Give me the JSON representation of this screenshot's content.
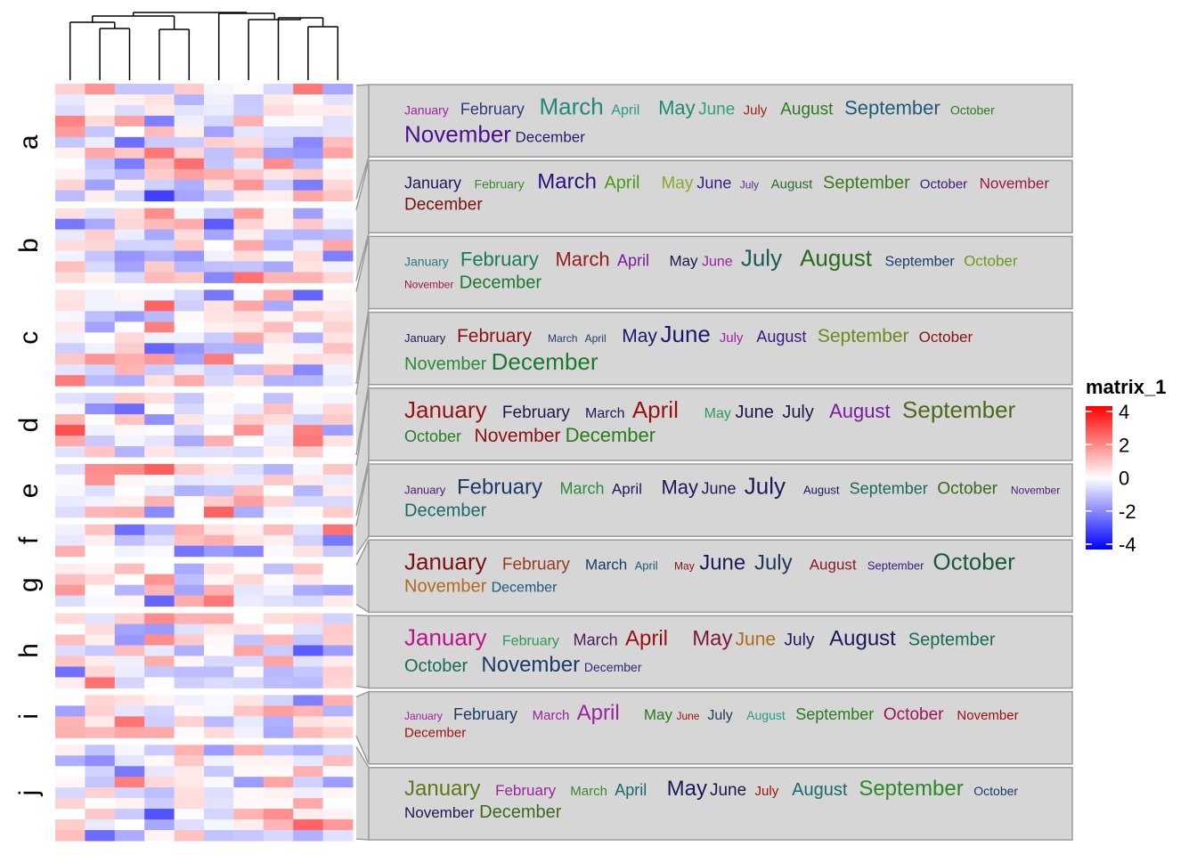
{
  "colors": {
    "neg": "#0000FF",
    "mid": "#FFFFFF",
    "pos": "#FF0000",
    "panel_fill": "#d6d6d6",
    "panel_border": "#9a9a9a",
    "link_line": "#9a9a9a",
    "dendrogram": "#000000"
  },
  "chart_data": {
    "type": "heatmap",
    "columns": 10,
    "row_groups": [
      {
        "label": "a",
        "n": 11
      },
      {
        "label": "b",
        "n": 7
      },
      {
        "label": "c",
        "n": 9
      },
      {
        "label": "d",
        "n": 6
      },
      {
        "label": "e",
        "n": 5
      },
      {
        "label": "f",
        "n": 3
      },
      {
        "label": "g",
        "n": 4
      },
      {
        "label": "h",
        "n": 7
      },
      {
        "label": "i",
        "n": 4
      },
      {
        "label": "j",
        "n": 9
      }
    ],
    "value_range": [
      -4,
      4
    ],
    "legend": {
      "title": "matrix_1",
      "ticks": [
        4,
        2,
        0,
        -2,
        -4
      ],
      "placement": "right"
    },
    "month_names": [
      "January",
      "February",
      "March",
      "April",
      "May",
      "June",
      "July",
      "August",
      "September",
      "October",
      "November",
      "December"
    ],
    "annotation_panels": [
      {
        "words": [
          {
            "w": "January",
            "s": 14,
            "c": "#a020a0"
          },
          {
            "w": "February",
            "s": 18,
            "c": "#2f3a7a"
          },
          {
            "w": "March",
            "s": 26,
            "c": "#1f8a7a"
          },
          {
            "w": "April",
            "s": 16,
            "c": "#2a9a8a"
          },
          {
            "w": "May",
            "s": 22,
            "c": "#208a70"
          },
          {
            "w": "June",
            "s": 19,
            "c": "#30a080"
          },
          {
            "w": "July",
            "s": 15,
            "c": "#a02010"
          },
          {
            "w": "August",
            "s": 19,
            "c": "#2f7a20"
          },
          {
            "w": "September",
            "s": 22,
            "c": "#1e5a7a"
          },
          {
            "w": "October",
            "s": 14,
            "c": "#2f7a20"
          },
          {
            "w": "November",
            "s": 26,
            "c": "#4a1090"
          },
          {
            "w": "December",
            "s": 17,
            "c": "#2a1a6a"
          }
        ]
      },
      {
        "words": [
          {
            "w": "January",
            "s": 18,
            "c": "#1a1a5a"
          },
          {
            "w": "February",
            "s": 14,
            "c": "#3a8a2a"
          },
          {
            "w": "March",
            "s": 24,
            "c": "#2a1080"
          },
          {
            "w": "April",
            "s": 20,
            "c": "#4a9a1a"
          },
          {
            "w": "May",
            "s": 19,
            "c": "#8aaa2a"
          },
          {
            "w": "June",
            "s": 18,
            "c": "#3a1a8a"
          },
          {
            "w": "July",
            "s": 12,
            "c": "#5a2a9a"
          },
          {
            "w": "August",
            "s": 15,
            "c": "#2a6a2a"
          },
          {
            "w": "September",
            "s": 20,
            "c": "#3a7a1a"
          },
          {
            "w": "October",
            "s": 15,
            "c": "#3a1a7a"
          },
          {
            "w": "November",
            "s": 17,
            "c": "#9a1a3a"
          },
          {
            "w": "December",
            "s": 19,
            "c": "#7a1010"
          }
        ]
      },
      {
        "words": [
          {
            "w": "January",
            "s": 14,
            "c": "#2a7a7a"
          },
          {
            "w": "February",
            "s": 22,
            "c": "#1a7a5a"
          },
          {
            "w": "March",
            "s": 22,
            "c": "#9a1a1a"
          },
          {
            "w": "April",
            "s": 18,
            "c": "#7a1a9a"
          },
          {
            "w": "May",
            "s": 17,
            "c": "#1a1a4a"
          },
          {
            "w": "June",
            "s": 16,
            "c": "#a020a0"
          },
          {
            "w": "July",
            "s": 26,
            "c": "#1a5a5a"
          },
          {
            "w": "August",
            "s": 26,
            "c": "#2a6a1a"
          },
          {
            "w": "September",
            "s": 16,
            "c": "#1a3a6a"
          },
          {
            "w": "October",
            "s": 17,
            "c": "#6a9a1a"
          },
          {
            "w": "November",
            "s": 12,
            "c": "#9a1a3a"
          },
          {
            "w": "December",
            "s": 20,
            "c": "#1a7a2a"
          }
        ]
      },
      {
        "words": [
          {
            "w": "January",
            "s": 13,
            "c": "#1a1a5a"
          },
          {
            "w": "February",
            "s": 21,
            "c": "#8a1010"
          },
          {
            "w": "March",
            "s": 12,
            "c": "#2a3a6a"
          },
          {
            "w": "April",
            "s": 12,
            "c": "#2a3a6a"
          },
          {
            "w": "May",
            "s": 21,
            "c": "#1a1a6a"
          },
          {
            "w": "June",
            "s": 26,
            "c": "#1a1a6a"
          },
          {
            "w": "July",
            "s": 15,
            "c": "#a020a0"
          },
          {
            "w": "August",
            "s": 18,
            "c": "#3a1a7a"
          },
          {
            "w": "September",
            "s": 21,
            "c": "#6a8a1a"
          },
          {
            "w": "October",
            "s": 17,
            "c": "#8a1010"
          },
          {
            "w": "November",
            "s": 20,
            "c": "#2a8a3a"
          },
          {
            "w": "December",
            "s": 26,
            "c": "#1a7a2a"
          }
        ]
      },
      {
        "words": [
          {
            "w": "January",
            "s": 26,
            "c": "#9a1010"
          },
          {
            "w": "February",
            "s": 19,
            "c": "#1a1a4a"
          },
          {
            "w": "March",
            "s": 16,
            "c": "#1a1a5a"
          },
          {
            "w": "April",
            "s": 26,
            "c": "#9a1010"
          },
          {
            "w": "May",
            "s": 16,
            "c": "#2a9a5a"
          },
          {
            "w": "June",
            "s": 20,
            "c": "#1a1a4a"
          },
          {
            "w": "July",
            "s": 20,
            "c": "#1a1a4a"
          },
          {
            "w": "August",
            "s": 22,
            "c": "#7a1aa0"
          },
          {
            "w": "September",
            "s": 26,
            "c": "#4a6a1a"
          },
          {
            "w": "October",
            "s": 18,
            "c": "#2a7a2a"
          },
          {
            "w": "November",
            "s": 21,
            "c": "#8a1010"
          },
          {
            "w": "December",
            "s": 22,
            "c": "#2a7a1a"
          }
        ]
      },
      {
        "words": [
          {
            "w": "January",
            "s": 13,
            "c": "#4a1a7a"
          },
          {
            "w": "February",
            "s": 24,
            "c": "#1a3a6a"
          },
          {
            "w": "March",
            "s": 18,
            "c": "#2a8a3a"
          },
          {
            "w": "April",
            "s": 17,
            "c": "#1a1a5a"
          },
          {
            "w": "May",
            "s": 22,
            "c": "#1a1a5a"
          },
          {
            "w": "June",
            "s": 18,
            "c": "#1a1a5a"
          },
          {
            "w": "July",
            "s": 26,
            "c": "#1a1a5a"
          },
          {
            "w": "August",
            "s": 13,
            "c": "#1a1a5a"
          },
          {
            "w": "September",
            "s": 18,
            "c": "#1a6a5a"
          },
          {
            "w": "October",
            "s": 19,
            "c": "#3a6a1a"
          },
          {
            "w": "November",
            "s": 12,
            "c": "#4a1a7a"
          },
          {
            "w": "December",
            "s": 20,
            "c": "#1a6a6a"
          }
        ]
      },
      {
        "words": [
          {
            "w": "January",
            "s": 26,
            "c": "#7a1010"
          },
          {
            "w": "February",
            "s": 19,
            "c": "#9a3a1a"
          },
          {
            "w": "March",
            "s": 17,
            "c": "#1a3a6a"
          },
          {
            "w": "April",
            "s": 13,
            "c": "#1a5a6a"
          },
          {
            "w": "May",
            "s": 12,
            "c": "#8a1010"
          },
          {
            "w": "June",
            "s": 24,
            "c": "#1a1a5a"
          },
          {
            "w": "July",
            "s": 24,
            "c": "#1a3a5a"
          },
          {
            "w": "August",
            "s": 17,
            "c": "#8a1a2a"
          },
          {
            "w": "September",
            "s": 13,
            "c": "#3a1a7a"
          },
          {
            "w": "October",
            "s": 26,
            "c": "#1a5a3a"
          },
          {
            "w": "November",
            "s": 20,
            "c": "#b06a1a"
          },
          {
            "w": "December",
            "s": 16,
            "c": "#1a5a7a"
          }
        ]
      },
      {
        "words": [
          {
            "w": "January",
            "s": 26,
            "c": "#c0108a"
          },
          {
            "w": "February",
            "s": 16,
            "c": "#2a9a5a"
          },
          {
            "w": "March",
            "s": 18,
            "c": "#4a1a5a"
          },
          {
            "w": "April",
            "s": 24,
            "c": "#9a1010"
          },
          {
            "w": "May",
            "s": 24,
            "c": "#7a1a3a"
          },
          {
            "w": "June",
            "s": 21,
            "c": "#b06a1a"
          },
          {
            "w": "July",
            "s": 19,
            "c": "#1a1a5a"
          },
          {
            "w": "August",
            "s": 24,
            "c": "#1a1a5a"
          },
          {
            "w": "September",
            "s": 20,
            "c": "#1a6a5a"
          },
          {
            "w": "October",
            "s": 20,
            "c": "#1a6a5a"
          },
          {
            "w": "November",
            "s": 24,
            "c": "#1a3a6a"
          },
          {
            "w": "December",
            "s": 14,
            "c": "#2a2a7a"
          }
        ]
      },
      {
        "words": [
          {
            "w": "January",
            "s": 12,
            "c": "#a020a0"
          },
          {
            "w": "February",
            "s": 18,
            "c": "#1a3a6a"
          },
          {
            "w": "March",
            "s": 15,
            "c": "#a020a0"
          },
          {
            "w": "April",
            "s": 24,
            "c": "#a020a0"
          },
          {
            "w": "May",
            "s": 17,
            "c": "#2a7a1a"
          },
          {
            "w": "June",
            "s": 12,
            "c": "#9a1010"
          },
          {
            "w": "July",
            "s": 16,
            "c": "#1a3a5a"
          },
          {
            "w": "August",
            "s": 14,
            "c": "#2a9a8a"
          },
          {
            "w": "September",
            "s": 18,
            "c": "#2a7a1a"
          },
          {
            "w": "October",
            "s": 19,
            "c": "#a0105a"
          },
          {
            "w": "November",
            "s": 15,
            "c": "#9a1010"
          },
          {
            "w": "December",
            "s": 15,
            "c": "#9a1010"
          }
        ]
      },
      {
        "words": [
          {
            "w": "January",
            "s": 24,
            "c": "#5a7a1a"
          },
          {
            "w": "February",
            "s": 17,
            "c": "#a020a0"
          },
          {
            "w": "March",
            "s": 15,
            "c": "#3a8a2a"
          },
          {
            "w": "April",
            "s": 18,
            "c": "#1a6a6a"
          },
          {
            "w": "May",
            "s": 24,
            "c": "#1a1a5a"
          },
          {
            "w": "June",
            "s": 19,
            "c": "#1a1a4a"
          },
          {
            "w": "July",
            "s": 15,
            "c": "#9a1010"
          },
          {
            "w": "August",
            "s": 20,
            "c": "#1a6a6a"
          },
          {
            "w": "September",
            "s": 24,
            "c": "#2a8a2a"
          },
          {
            "w": "October",
            "s": 14,
            "c": "#1a3a6a"
          },
          {
            "w": "November",
            "s": 17,
            "c": "#1a1a5a"
          },
          {
            "w": "December",
            "s": 20,
            "c": "#3a6a1a"
          }
        ]
      }
    ]
  }
}
